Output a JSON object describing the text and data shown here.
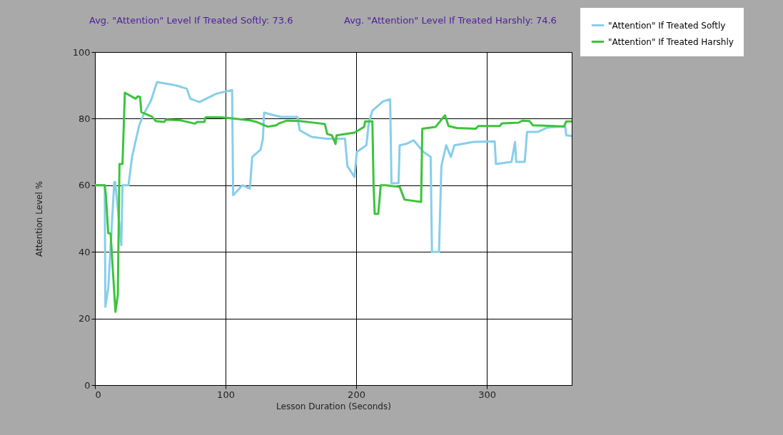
{
  "chart_data": {
    "type": "line",
    "xlabel": "Lesson Duration (Seconds)",
    "ylabel": "Attention Level %",
    "annotations": [
      "Avg. \"Attention\" Level If Treated Softly: 73.6",
      "Avg. \"Attention\" Level If Treated Harshly: 74.6"
    ],
    "xlim": [
      0,
      365
    ],
    "xticks": [
      0,
      100,
      200,
      300
    ],
    "ylim": [
      0,
      100
    ],
    "yticks": [
      0,
      20,
      40,
      60,
      80,
      100
    ],
    "grid": true,
    "legend": "top right",
    "line_style": "solid",
    "marker": "none",
    "series": [
      {
        "name": "\"Attention\" If Treated Softly",
        "color": "#87ceeb",
        "x": [
          0,
          7.5,
          8,
          10.2,
          14.8,
          15.5,
          20.2,
          21.1,
          25.7,
          28.4,
          33.9,
          37.5,
          43,
          47.5,
          62,
          70.3,
          73,
          80,
          93,
          105,
          105.8,
          113,
          118.6,
          120.4,
          126.8,
          128.6,
          129.5,
          142.2,
          155,
          156.8,
          166,
          177,
          191.4,
          193.3,
          198.7,
          200.5,
          207.8,
          209.7,
          212.4,
          220.6,
          226,
          227,
          232.4,
          233.3,
          238.8,
          244,
          251.5,
          257,
          258,
          263.4,
          265.2,
          268.9,
          272.5,
          275.2,
          289.8,
          306,
          307,
          318.9,
          321.6,
          322.5,
          329,
          330.8,
          339,
          346,
          360,
          360.8,
          365
        ],
        "values": [
          60,
          60,
          23.5,
          29,
          61,
          61,
          42,
          60,
          60,
          68.5,
          78,
          81.5,
          85.5,
          91,
          90,
          89,
          86,
          85,
          87.5,
          88.6,
          57,
          60,
          59,
          68.5,
          70.7,
          74,
          81.8,
          80.5,
          80.5,
          76.5,
          74.5,
          74,
          74,
          65.7,
          62.5,
          70,
          72,
          78.8,
          82.4,
          85.2,
          85.8,
          60.6,
          60.6,
          72,
          72.5,
          73.5,
          70,
          68.5,
          40,
          40,
          65.7,
          72,
          68.5,
          72,
          73,
          73.2,
          66.4,
          67,
          73,
          67,
          67,
          76,
          76,
          77.3,
          77.8,
          75,
          74.8
        ]
      },
      {
        "name": "\"Attention\" If Treated Harshly",
        "color": "#3cc43c",
        "x": [
          0,
          7.5,
          8.4,
          10.2,
          12,
          15.7,
          17.5,
          18.8,
          21.1,
          22.9,
          31.1,
          32.8,
          34.6,
          35.5,
          43.7,
          46.4,
          52.8,
          54.6,
          65.6,
          76.5,
          78.3,
          83.8,
          84.7,
          96.6,
          107.5,
          118.4,
          123.9,
          132.3,
          138.7,
          140.5,
          146.9,
          156.8,
          176,
          177.8,
          181.4,
          184.2,
          185,
          198.7,
          206,
          206.9,
          212.4,
          213.3,
          214.2,
          216.9,
          218.8,
          222.4,
          233.3,
          237,
          249.7,
          250.6,
          260.7,
          268,
          270.7,
          277,
          291.6,
          293.4,
          309.8,
          311.6,
          324.4,
          327.1,
          332.6,
          335.3,
          351.7,
          359,
          360.8,
          365
        ],
        "values": [
          60,
          60,
          57,
          45.6,
          45.5,
          22,
          27,
          66.4,
          66.4,
          87.8,
          86,
          86.7,
          86.5,
          82,
          80.6,
          79.3,
          79,
          79.7,
          79.5,
          78.5,
          79,
          79,
          80.4,
          80.4,
          80,
          79.5,
          79,
          77.6,
          78,
          78.5,
          79.4,
          79.3,
          78.4,
          75.4,
          75,
          72.4,
          75,
          75.8,
          77.5,
          79.2,
          79.2,
          60,
          51.4,
          51.4,
          60,
          60,
          59.5,
          55.7,
          55,
          77,
          77.5,
          81,
          77.8,
          77.2,
          77,
          77.8,
          77.8,
          78.6,
          78.8,
          79.4,
          79.3,
          78,
          77.8,
          77.6,
          79.2,
          79.2
        ]
      }
    ]
  }
}
